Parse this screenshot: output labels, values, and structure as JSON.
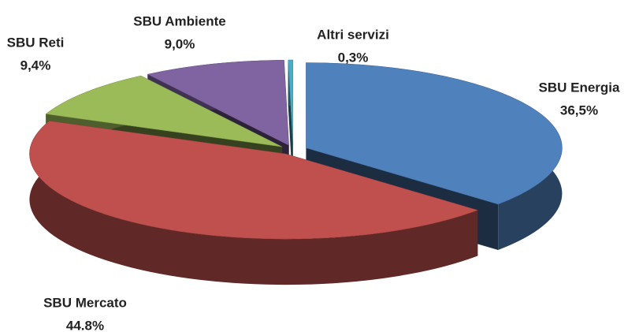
{
  "chart_data": {
    "type": "pie3d",
    "categories": [
      "SBU Energia",
      "SBU Mercato",
      "SBU Reti",
      "SBU Ambiente",
      "Altri servizi"
    ],
    "values": [
      36.5,
      44.8,
      9.4,
      9.0,
      0.3
    ],
    "value_labels": [
      "36,5%",
      "44.8%",
      "9,4%",
      "9,0%",
      "0,3%"
    ],
    "colors": [
      "#4f81bd",
      "#c0504d",
      "#9bbb59",
      "#8064a2",
      "#4bacc6"
    ]
  }
}
